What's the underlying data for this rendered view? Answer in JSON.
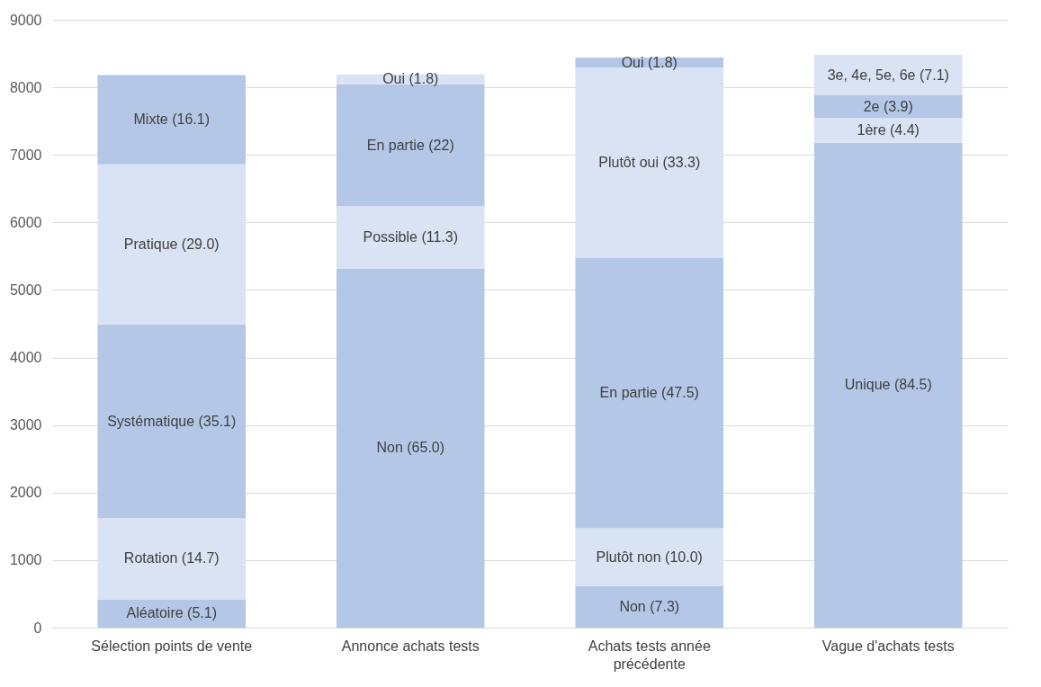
{
  "chart_data": {
    "type": "bar",
    "stacked": true,
    "categories": [
      "Sélection points de vente",
      "Annonce achats tests",
      "Achats tests année précédente",
      "Vague d'achats tests"
    ],
    "series": [
      {
        "color": "#b4c7e7",
        "values": [
          420,
          5320,
          620,
          7180
        ]
      },
      {
        "color": "#dae3f3",
        "values": [
          1200,
          920,
          850,
          370
        ]
      },
      {
        "color": "#b4c7e7",
        "values": [
          2870,
          1800,
          4010,
          330
        ]
      },
      {
        "color": "#dae3f3",
        "values": [
          2370,
          150,
          2810,
          600
        ]
      },
      {
        "color": "#b4c7e7",
        "values": [
          1320,
          null,
          150,
          null
        ]
      }
    ],
    "annotations": [
      "Aléatoire (5.1)",
      "Rotation (14.7)",
      "Systématique (35.1)",
      "Pratique (29.0)",
      "Mixte (16.1)",
      "Non (65.0)",
      "Possible (11.3)",
      "En partie (22)",
      "Oui (1.8)",
      "Non (7.3)",
      "Plutôt non (10.0)",
      "En partie (47.5)",
      "Plutôt oui (33.3)",
      "Oui (1.8)",
      "Unique (84.5)",
      "1ère (4.4)",
      "2e (3.9)",
      "3e, 4e, 5e, 6e (7.1)"
    ],
    "ylim": [
      0,
      9000
    ],
    "yticks": [
      0,
      1000,
      2000,
      3000,
      4000,
      5000,
      6000,
      7000,
      8000,
      9000
    ],
    "grid": "y"
  }
}
